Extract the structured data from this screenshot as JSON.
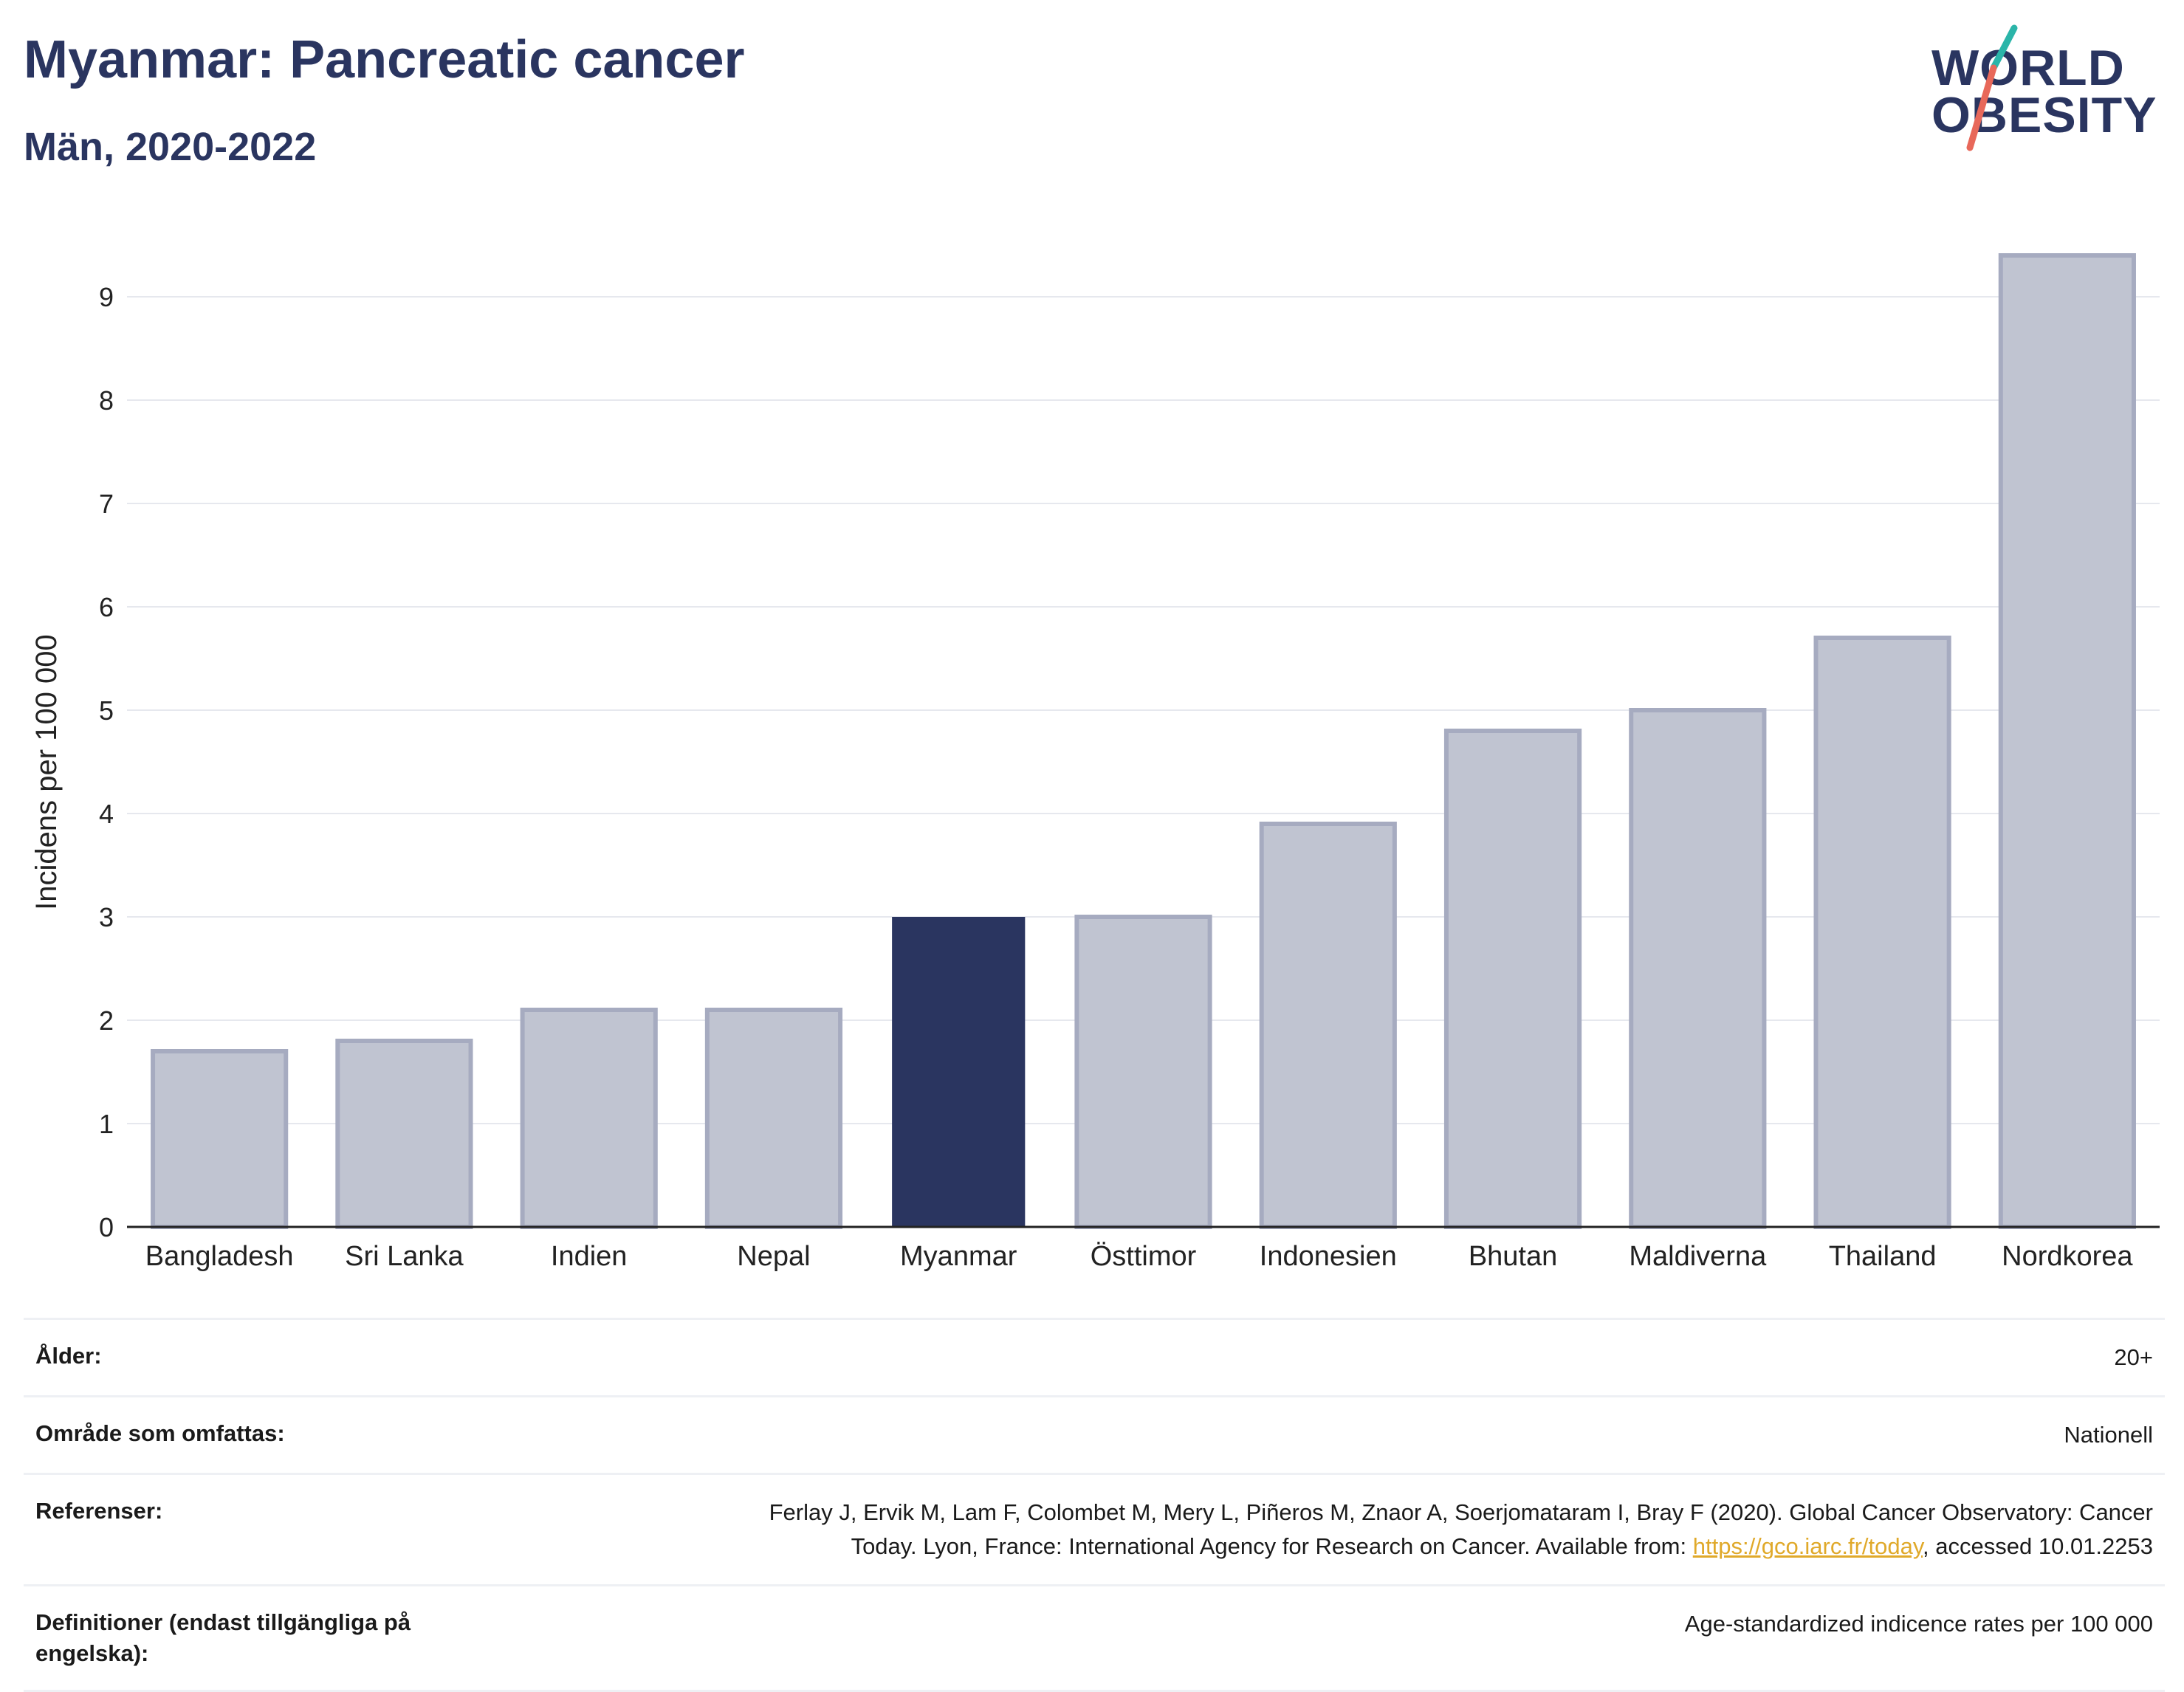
{
  "header": {
    "title": "Myanmar: Pancreatic cancer",
    "subtitle": "Män, 2020-2022"
  },
  "logo": {
    "line1": "WORLD",
    "line2": "OBESITY",
    "colors": {
      "text": "#2a3560",
      "slash_top": "#2bb5a9",
      "slash_bottom": "#e8685a"
    }
  },
  "chart_data": {
    "type": "bar",
    "categories": [
      "Bangladesh",
      "Sri Lanka",
      "Indien",
      "Nepal",
      "Myanmar",
      "Östtimor",
      "Indonesien",
      "Bhutan",
      "Maldiverna",
      "Thailand",
      "Nordkorea"
    ],
    "values": [
      1.7,
      1.8,
      2.1,
      2.1,
      3.0,
      3.0,
      3.9,
      4.8,
      5.0,
      5.7,
      9.4
    ],
    "highlight": "Myanmar",
    "ylabel": "Incidens per 100 000",
    "xlabel": "",
    "ylim": [
      0,
      9.8
    ],
    "yticks": [
      0,
      1,
      2,
      3,
      4,
      5,
      6,
      7,
      8,
      9
    ],
    "grid": true,
    "colors": {
      "bar": "#c0c4d1",
      "bar_edge": "#a6abc0",
      "highlight": "#2a3560",
      "grid": "#e6e8ee",
      "axis": "#222222"
    }
  },
  "meta": {
    "age_label": "Ålder:",
    "age_value": "20+",
    "area_label": "Område som omfattas:",
    "area_value": "Nationell",
    "ref_label": "Referenser:",
    "ref_text_1": "Ferlay J, Ervik M, Lam F, Colombet M, Mery L, Piñeros M, Znaor A, Soerjomataram I, Bray F (2020). Global Cancer Observatory: Cancer",
    "ref_text_2": "Today. Lyon, France: International Agency for Research on Cancer. Available from: ",
    "ref_link": "https://gco.iarc.fr/today",
    "ref_text_3": ", accessed 10.01.2253",
    "def_label": "Definitioner (endast tillgängliga på engelska):",
    "def_value": "Age-standardized indicence rates per 100 000"
  }
}
